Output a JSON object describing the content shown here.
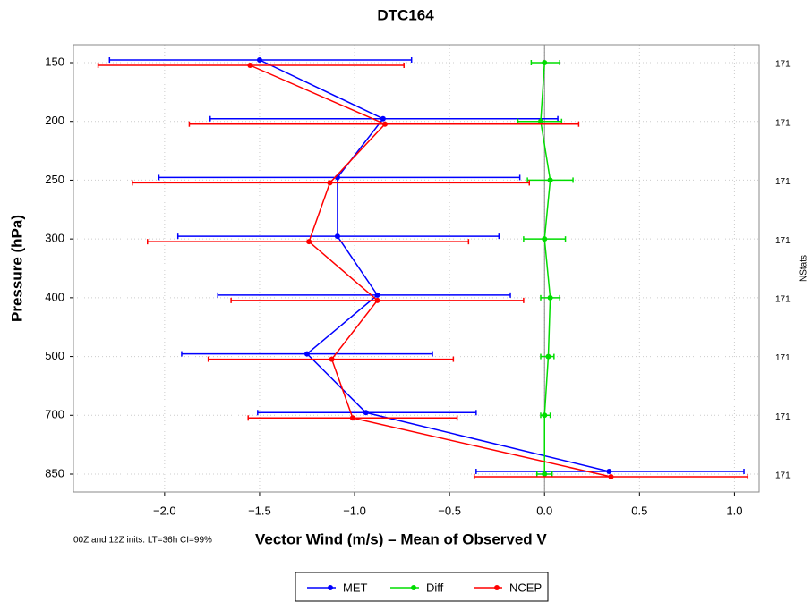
{
  "chart_data": {
    "type": "errorbar-profile",
    "title": "DTC164",
    "y_label": "Pressure (hPa)",
    "x_label": "Vector Wind (m/s) – Mean of Observed V",
    "note": "00Z and 12Z inits.  LT=36h  CI=99%",
    "right_label": "NStats",
    "categories": [
      150,
      200,
      250,
      300,
      400,
      500,
      700,
      850
    ],
    "nstats": [
      171,
      171,
      171,
      171,
      171,
      171,
      171,
      171
    ],
    "xlim": [
      -2.48,
      1.13
    ],
    "xticks": [
      {
        "value": -2,
        "label": "−2.0"
      },
      {
        "value": -1.5,
        "label": "−1.5"
      },
      {
        "value": -1,
        "label": "−1.0"
      },
      {
        "value": -0.5,
        "label": "−0.5"
      },
      {
        "value": 0,
        "label": "0.0"
      },
      0.5,
      {
        "value": 1,
        "label": "1.0"
      }
    ],
    "grid": true,
    "series": [
      {
        "name": "MET",
        "color": "#0000ff",
        "values": [
          -1.5,
          -0.85,
          -1.09,
          -1.09,
          -0.88,
          -1.25,
          -0.94,
          0.34
        ],
        "lower": [
          -2.29,
          -1.76,
          -2.03,
          -1.93,
          -1.72,
          -1.91,
          -1.51,
          -0.36
        ],
        "upper": [
          -0.7,
          0.07,
          -0.13,
          -0.24,
          -0.18,
          -0.59,
          -0.36,
          1.05
        ]
      },
      {
        "name": "Diff",
        "color": "#00dd00",
        "values": [
          0.0,
          -0.02,
          0.03,
          0.0,
          0.03,
          0.02,
          0.0,
          0.0
        ],
        "lower": [
          -0.07,
          -0.14,
          -0.09,
          -0.11,
          -0.02,
          -0.02,
          -0.02,
          -0.04
        ],
        "upper": [
          0.08,
          0.09,
          0.15,
          0.11,
          0.08,
          0.05,
          0.03,
          0.04
        ]
      },
      {
        "name": "NCEP",
        "color": "#ff0000",
        "values": [
          -1.55,
          -0.84,
          -1.13,
          -1.24,
          -0.88,
          -1.12,
          -1.01,
          0.35
        ],
        "lower": [
          -2.35,
          -1.87,
          -2.17,
          -2.09,
          -1.65,
          -1.77,
          -1.56,
          -0.37
        ],
        "upper": [
          -0.74,
          0.18,
          -0.08,
          -0.4,
          -0.11,
          -0.48,
          -0.46,
          1.07
        ]
      }
    ]
  }
}
